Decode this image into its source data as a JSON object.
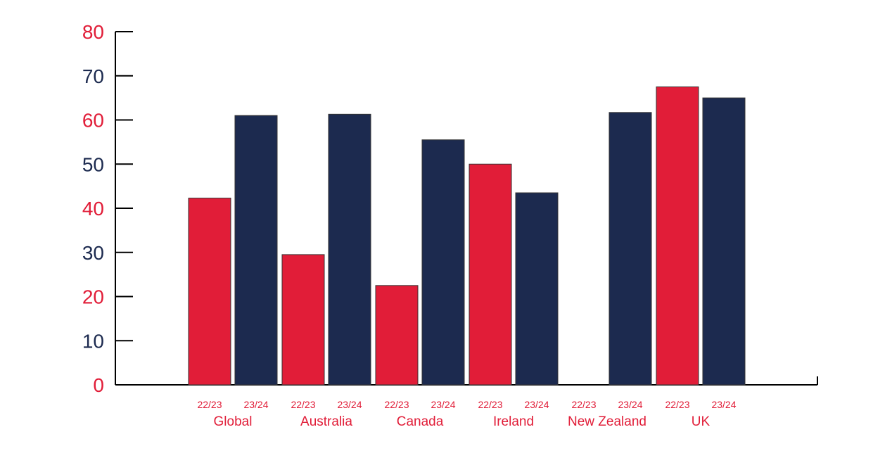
{
  "chart_data": {
    "type": "bar",
    "categories": [
      "Global",
      "Australia",
      "Canada",
      "Ireland",
      "New Zealand",
      "UK"
    ],
    "sub_labels": [
      "22/23",
      "23/24"
    ],
    "series": [
      {
        "values": [
          42.3,
          29.5,
          22.5,
          50.0,
          0,
          67.5
        ]
      },
      {
        "values": [
          61.0,
          61.3,
          55.5,
          43.5,
          61.7,
          65.0
        ]
      }
    ],
    "ylim": [
      0,
      80
    ],
    "yticks": [
      0,
      10,
      20,
      30,
      40,
      50,
      60,
      70,
      80
    ],
    "grid": false,
    "colors": {
      "series_a": "#e11d38",
      "series_b": "#1c2a4f",
      "tick_red": "#e11d38",
      "tick_navy": "#1c2a4f",
      "axis": "#000000"
    }
  }
}
